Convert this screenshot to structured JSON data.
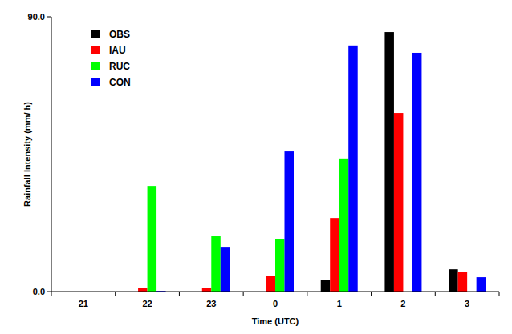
{
  "chart_data": {
    "type": "bar",
    "x_label": "Time (UTC)",
    "y_label": "Rainfall Intensity (mm/ h)",
    "categories": [
      "21",
      "22",
      "23",
      "0",
      "1",
      "2",
      "3"
    ],
    "series": [
      {
        "name": "OBS",
        "color": "#000000",
        "values": [
          0,
          0,
          0,
          0,
          3.9,
          85.0,
          7.3
        ]
      },
      {
        "name": "IAU",
        "color": "#ff0000",
        "values": [
          0,
          1.3,
          1.2,
          5.0,
          24.1,
          58.5,
          6.3
        ]
      },
      {
        "name": "RUC",
        "color": "#00ff00",
        "values": [
          0,
          34.6,
          18.1,
          17.3,
          43.6,
          0,
          0
        ]
      },
      {
        "name": "CON",
        "color": "#0000ff",
        "values": [
          0,
          0.2,
          14.4,
          45.9,
          80.6,
          78.2,
          4.7
        ]
      }
    ],
    "ylim": [
      0,
      90
    ],
    "yticks": [
      {
        "value": 0,
        "label": "0.0"
      },
      {
        "value": 90,
        "label": "90.0"
      }
    ],
    "grid": false,
    "legend": "upper left"
  }
}
